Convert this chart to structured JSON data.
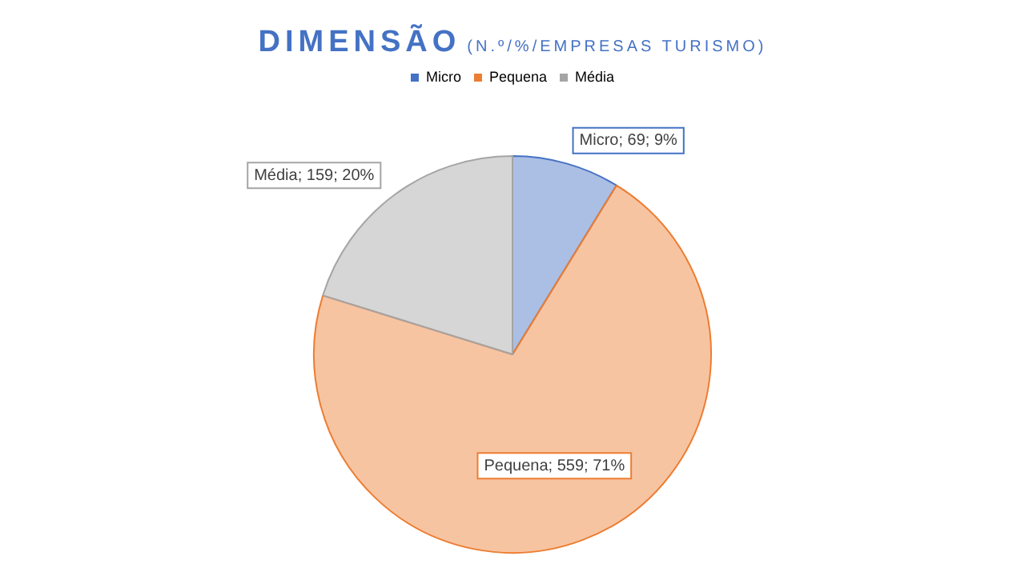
{
  "chart_data": {
    "type": "pie",
    "title": "DIMENSÃO",
    "subtitle": "(N.º/%/EMPRESAS TURISMO)",
    "categories": [
      "Micro",
      "Pequena",
      "Média"
    ],
    "values": [
      69,
      559,
      159
    ],
    "colors": [
      "#4472c4",
      "#ed7d31",
      "#a5a5a5"
    ],
    "value_labels": [
      "Micro; 69; 9%",
      "Pequena; 559; 71%",
      "Média; 159; 20%"
    ],
    "legend": "top"
  }
}
